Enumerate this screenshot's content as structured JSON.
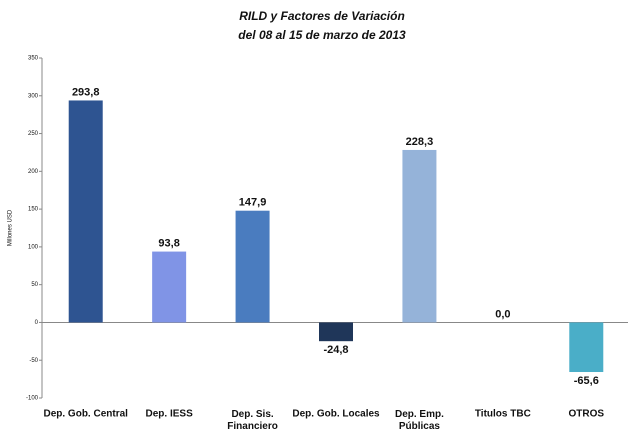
{
  "chart_data": {
    "type": "bar",
    "title": "RILD y Factores de Variación",
    "subtitle": "del 08 al 15 de marzo de 2013",
    "y_label": "Millones USD",
    "categories": [
      "Dep. Gob. Central",
      "Dep. IESS",
      "Dep. Sis. Financiero",
      "Dep. Gob. Locales",
      "Dep. Emp. Públicas",
      "Titulos TBC",
      "OTROS"
    ],
    "values": [
      293.8,
      93.8,
      147.9,
      -24.8,
      228.3,
      0,
      -65.6
    ],
    "value_labels": [
      "293,8",
      "93,8",
      "147,9",
      "-24,8",
      "228,3",
      "0,0",
      "-65,6"
    ],
    "colors": [
      "#2e5491",
      "#8094e6",
      "#4a7cbf",
      "#1f3659",
      "#95b3d9",
      "#7f9fcf",
      "#4aaec8"
    ],
    "ylim": [
      -100,
      350
    ],
    "yticks": [
      -100,
      -50,
      0,
      50,
      100,
      150,
      200,
      250,
      300,
      350
    ]
  }
}
